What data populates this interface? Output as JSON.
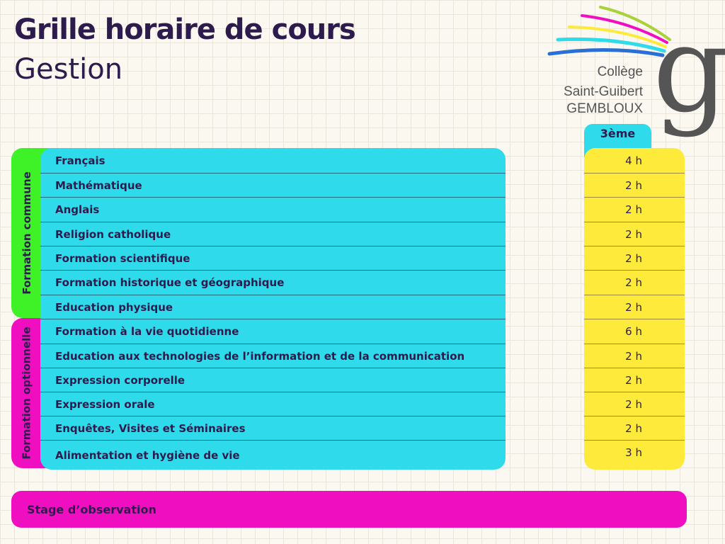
{
  "header": {
    "title": "Grille horaire de cours",
    "subtitle": "Gestion"
  },
  "logo": {
    "line1": "Collège",
    "line2": "Saint-Guibert",
    "line3": "GEMBLOUX",
    "letter": "g",
    "stripe_colors": [
      "#a8d13a",
      "#f00fc0",
      "#fdea3a",
      "#2fdbea",
      "#2a6fd6"
    ]
  },
  "groups": {
    "commune": "Formation commune",
    "optionnelle": "Formation optionnelle"
  },
  "column_header": "3ème",
  "subjects": [
    {
      "name": "Français",
      "hours": "4 h",
      "group": "commune"
    },
    {
      "name": "Mathématique",
      "hours": "2 h",
      "group": "commune"
    },
    {
      "name": "Anglais",
      "hours": "2 h",
      "group": "commune"
    },
    {
      "name": "Religion catholique",
      "hours": "2 h",
      "group": "commune"
    },
    {
      "name": "Formation scientifique",
      "hours": "2 h",
      "group": "commune"
    },
    {
      "name": "Formation historique et géographique",
      "hours": "2 h",
      "group": "commune"
    },
    {
      "name": "Education physique",
      "hours": "2 h",
      "group": "commune"
    },
    {
      "name": "Formation à la vie quotidienne",
      "hours": "6 h",
      "group": "optionnelle"
    },
    {
      "name": "Education aux technologies de l’information et de la communication",
      "hours": "2 h",
      "group": "optionnelle"
    },
    {
      "name": "Expression corporelle",
      "hours": "2 h",
      "group": "optionnelle"
    },
    {
      "name": "Expression orale",
      "hours": "2 h",
      "group": "optionnelle"
    },
    {
      "name": "Enquêtes, Visites et Séminaires",
      "hours": "2 h",
      "group": "optionnelle"
    },
    {
      "name": "Alimentation et hygiène de vie",
      "hours": "3 h",
      "group": "optionnelle"
    }
  ],
  "footer": {
    "stage": "Stage d’observation"
  },
  "colors": {
    "commune": "#3ff227",
    "optionnelle": "#f00fc0",
    "subjects_bg": "#2fdbea",
    "hours_bg": "#fdea3a",
    "text": "#2d1b4e"
  }
}
